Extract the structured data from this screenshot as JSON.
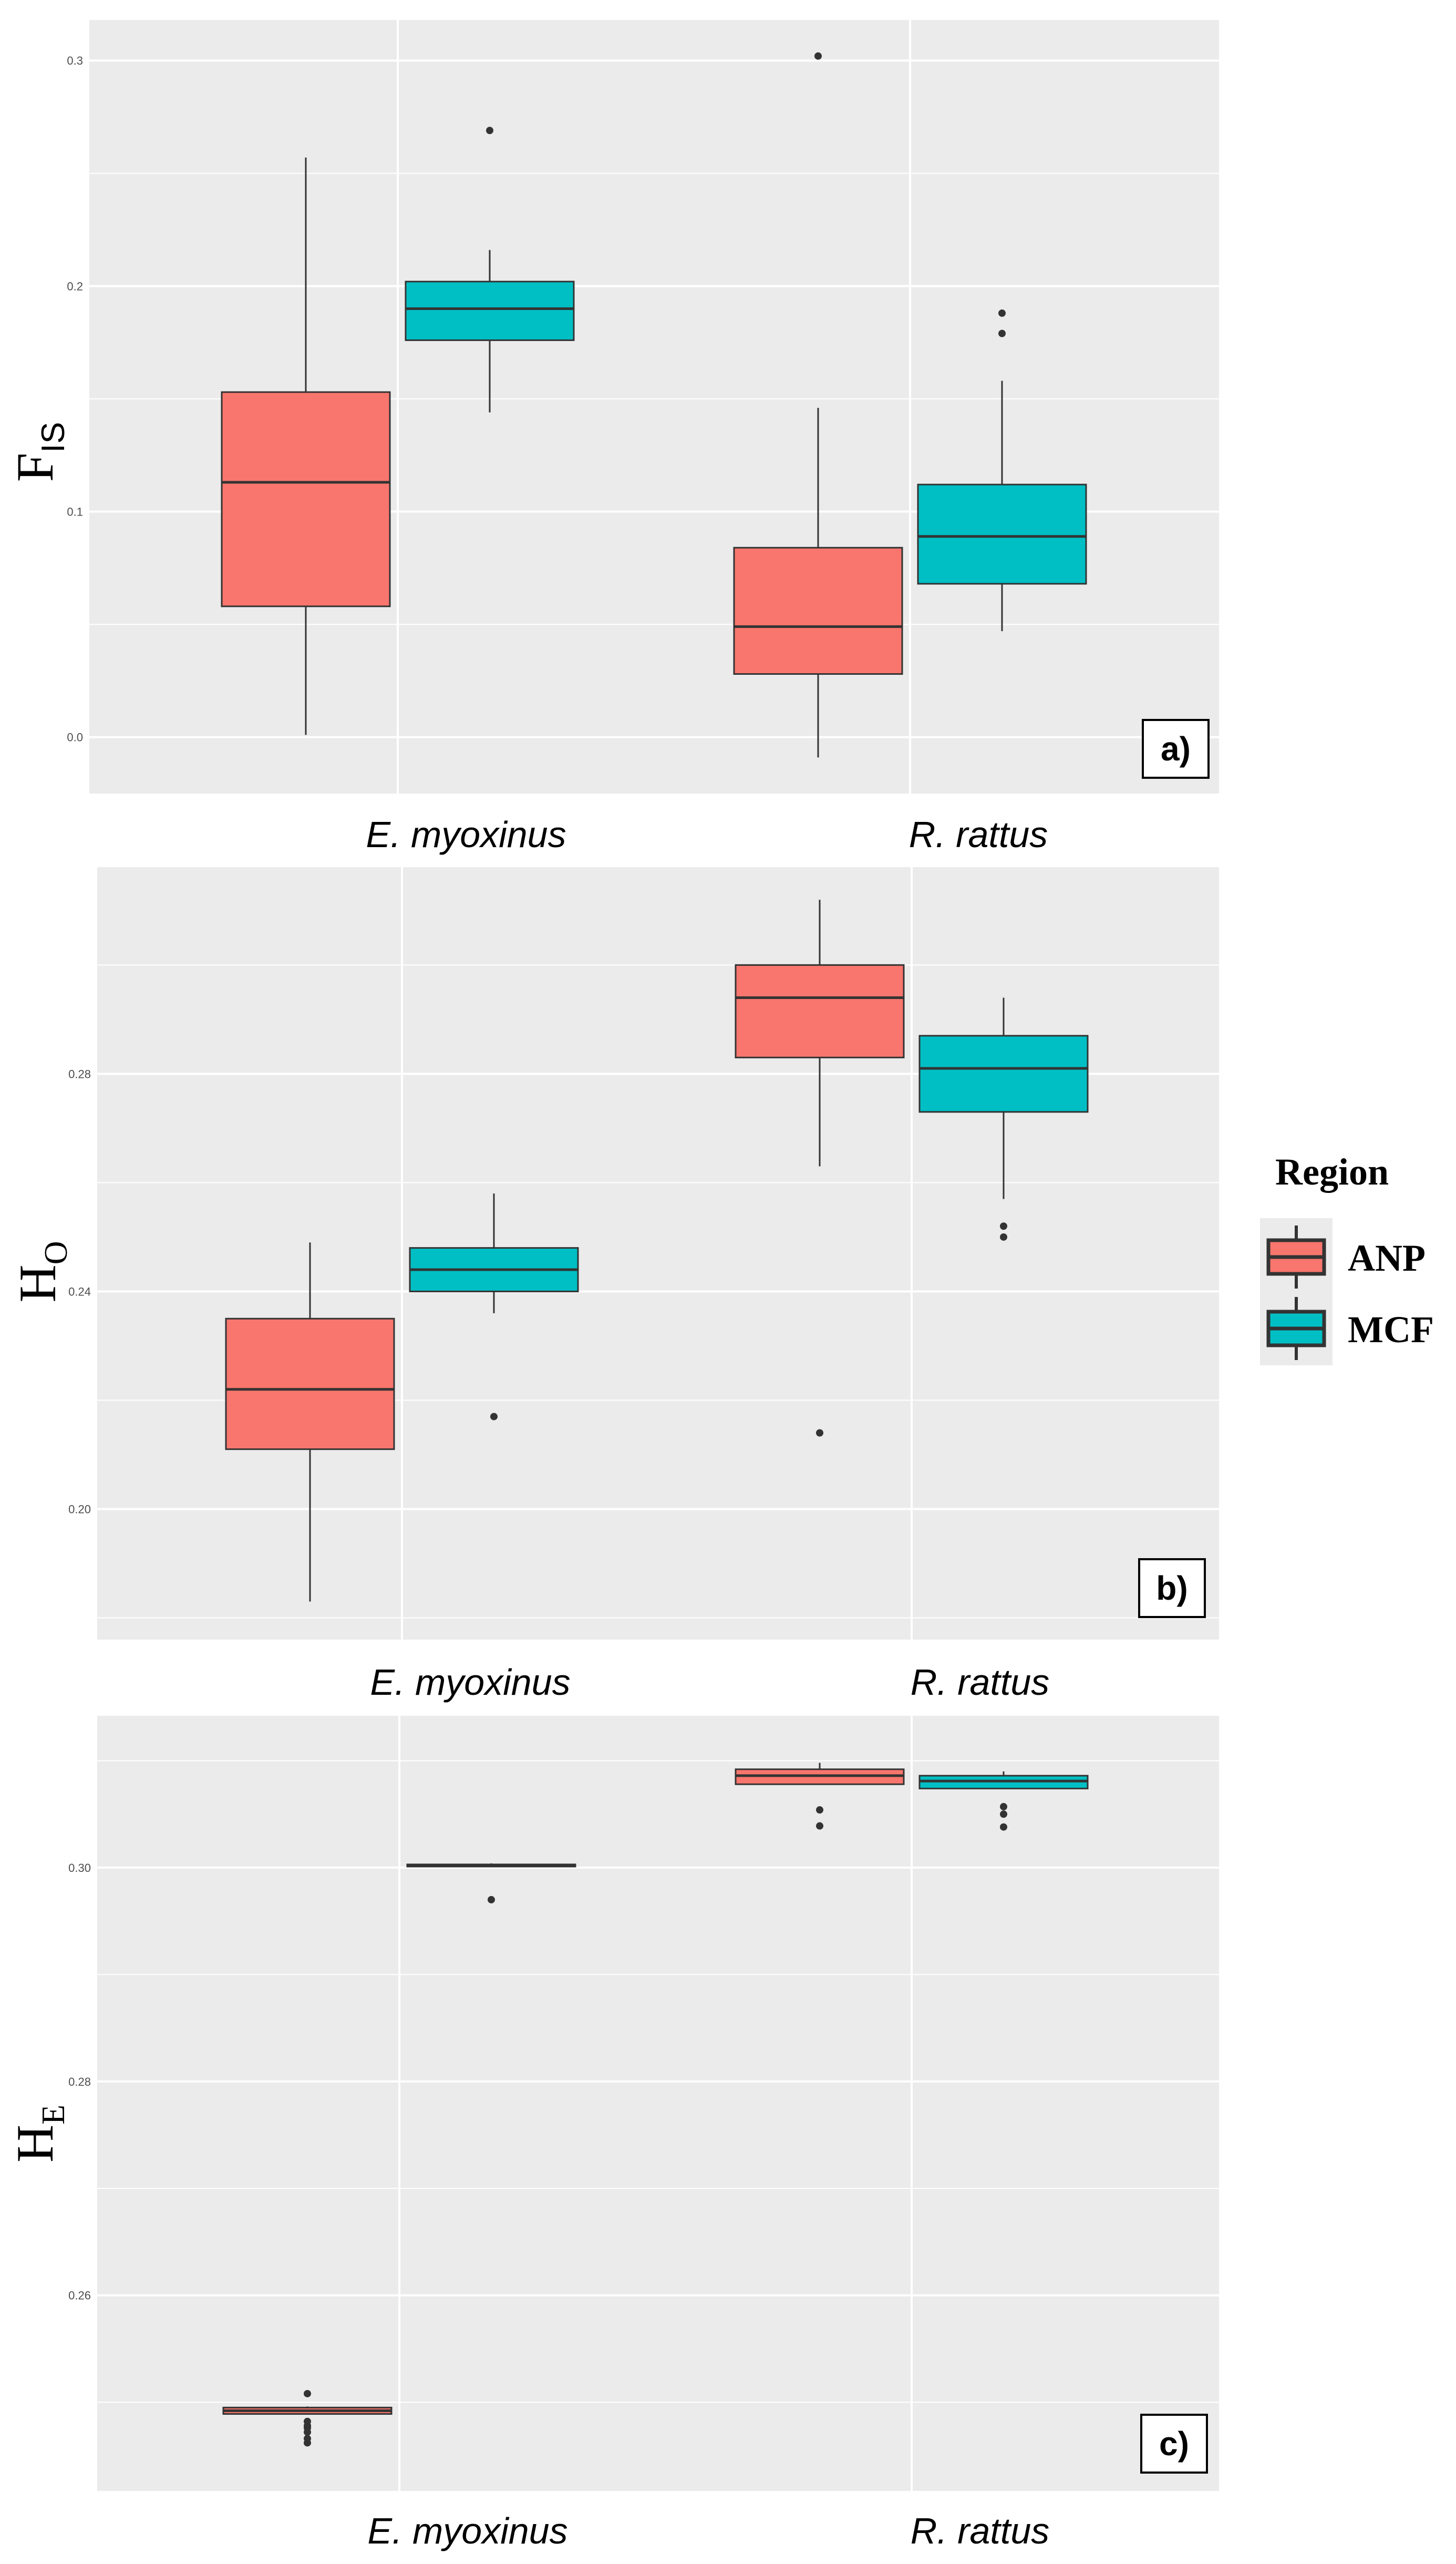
{
  "chart_data": [
    {
      "type": "boxplot",
      "panel_tag": "a)",
      "ylabel_main": "F",
      "ylabel_sub": "IS",
      "categories": [
        "E. myoxinus",
        "R. rattus"
      ],
      "y_ticks": [
        "0.0",
        "0.1",
        "0.2",
        "0.3"
      ],
      "y_tick_values": [
        0.0,
        0.1,
        0.2,
        0.3
      ],
      "ylim": [
        -0.025,
        0.318
      ],
      "grid": true,
      "series": [
        {
          "name": "ANP",
          "boxes": [
            {
              "category": "E. myoxinus",
              "whisker_low": 0.001,
              "q1": 0.058,
              "median": 0.113,
              "q3": 0.153,
              "whisker_high": 0.257,
              "outliers": []
            },
            {
              "category": "R. rattus",
              "whisker_low": -0.009,
              "q1": 0.028,
              "median": 0.049,
              "q3": 0.084,
              "whisker_high": 0.146,
              "outliers": [
                0.302
              ]
            }
          ]
        },
        {
          "name": "MCF",
          "boxes": [
            {
              "category": "E. myoxinus",
              "whisker_low": 0.144,
              "q1": 0.176,
              "median": 0.19,
              "q3": 0.202,
              "whisker_high": 0.216,
              "outliers": [
                0.269
              ]
            },
            {
              "category": "R. rattus",
              "whisker_low": 0.047,
              "q1": 0.068,
              "median": 0.089,
              "q3": 0.112,
              "whisker_high": 0.158,
              "outliers": [
                0.179,
                0.188
              ]
            }
          ]
        }
      ]
    },
    {
      "type": "boxplot",
      "panel_tag": "b)",
      "ylabel_main": "H",
      "ylabel_sub": "O",
      "categories": [
        "E. myoxinus",
        "R. rattus"
      ],
      "y_ticks": [
        "0.20",
        "0.24",
        "0.28"
      ],
      "y_tick_values": [
        0.2,
        0.24,
        0.28
      ],
      "ylim": [
        0.176,
        0.318
      ],
      "grid": true,
      "series": [
        {
          "name": "ANP",
          "boxes": [
            {
              "category": "E. myoxinus",
              "whisker_low": 0.183,
              "q1": 0.211,
              "median": 0.222,
              "q3": 0.235,
              "whisker_high": 0.249,
              "outliers": []
            },
            {
              "category": "R. rattus",
              "whisker_low": 0.263,
              "q1": 0.283,
              "median": 0.294,
              "q3": 0.3,
              "whisker_high": 0.312,
              "outliers": [
                0.214
              ]
            }
          ]
        },
        {
          "name": "MCF",
          "boxes": [
            {
              "category": "E. myoxinus",
              "whisker_low": 0.236,
              "q1": 0.24,
              "median": 0.244,
              "q3": 0.248,
              "whisker_high": 0.258,
              "outliers": [
                0.217
              ]
            },
            {
              "category": "R. rattus",
              "whisker_low": 0.257,
              "q1": 0.273,
              "median": 0.281,
              "q3": 0.287,
              "whisker_high": 0.294,
              "outliers": [
                0.25,
                0.252
              ]
            }
          ]
        }
      ]
    },
    {
      "type": "boxplot",
      "panel_tag": "c)",
      "ylabel_main": "H",
      "ylabel_sub": "E",
      "categories": [
        "E. myoxinus",
        "R. rattus"
      ],
      "y_ticks": [
        "0.26",
        "0.28",
        "0.30"
      ],
      "y_tick_values": [
        0.26,
        0.28,
        0.3
      ],
      "ylim": [
        0.2417,
        0.3142
      ],
      "grid": true,
      "series": [
        {
          "name": "ANP",
          "boxes": [
            {
              "category": "E. myoxinus",
              "whisker_low": 0.2489,
              "q1": 0.2489,
              "median": 0.2492,
              "q3": 0.2495,
              "whisker_high": 0.2496,
              "outliers": [
                0.2508,
                0.2482,
                0.2478,
                0.2476,
                0.2472,
                0.2466,
                0.2462
              ]
            },
            {
              "category": "R. rattus",
              "whisker_low": 0.3078,
              "q1": 0.3078,
              "median": 0.3086,
              "q3": 0.3092,
              "whisker_high": 0.3098,
              "outliers": [
                0.3054,
                0.3039
              ]
            }
          ]
        },
        {
          "name": "MCF",
          "boxes": [
            {
              "category": "E. myoxinus",
              "whisker_low": 0.3001,
              "q1": 0.3001,
              "median": 0.3002,
              "q3": 0.3003,
              "whisker_high": 0.3004,
              "outliers": [
                0.297
              ]
            },
            {
              "category": "R. rattus",
              "whisker_low": 0.3074,
              "q1": 0.3074,
              "median": 0.3081,
              "q3": 0.3086,
              "whisker_high": 0.309,
              "outliers": [
                0.3057,
                0.305,
                0.3038
              ]
            }
          ]
        }
      ]
    }
  ],
  "legend": {
    "title": "Region",
    "items": [
      {
        "label": "ANP",
        "color": "#F8766D"
      },
      {
        "label": "MCF",
        "color": "#00BFC4"
      }
    ],
    "placement": "right"
  },
  "colors": {
    "panel_bg": "#EBEBEB",
    "grid": "#FFFFFF",
    "box_outline": "#333333"
  }
}
